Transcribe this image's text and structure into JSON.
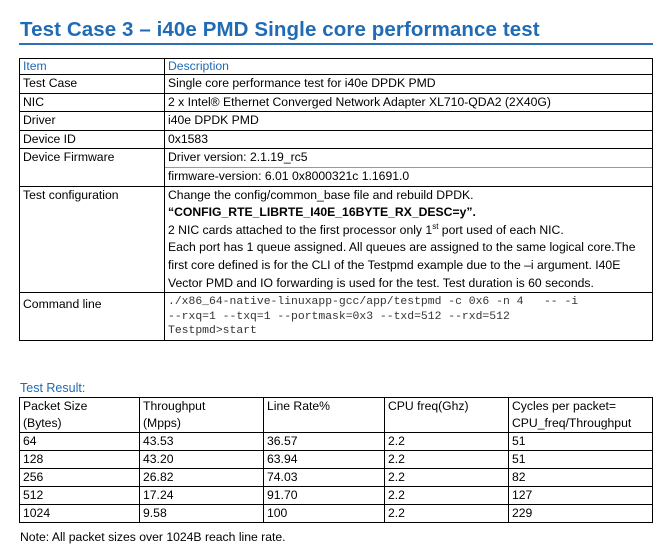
{
  "title": "Test Case 3 – i40e PMD Single core performance test",
  "info": {
    "header": {
      "item": "Item",
      "description": "Description"
    },
    "test_case": {
      "label": "Test Case",
      "value": "Single core performance test for i40e DPDK PMD"
    },
    "nic": {
      "label": "NIC",
      "value": "2 x Intel® Ethernet Converged Network Adapter XL710-QDA2 (2X40G)"
    },
    "driver": {
      "label": "Driver",
      "value": "i40e DPDK PMD"
    },
    "device_id": {
      "label": "Device ID",
      "value": "0x1583"
    },
    "firmware": {
      "label": "Device Firmware",
      "line1": "Driver version: 2.1.19_rc5",
      "line2": "firmware-version: 6.01 0x8000321c 1.1691.0"
    },
    "test_config": {
      "label": "Test configuration",
      "line1": "Change the config/common_base file and rebuild DPDK.",
      "line2": "“CONFIG_RTE_LIBRTE_I40E_16BYTE_RX_DESC=y”.",
      "line3a": "2 NIC cards attached to the first processor only 1",
      "line3sup": "st",
      "line3b": " port used of each NIC.",
      "line4": "Each port has 1 queue assigned. All queues are assigned to the same logical core.The first core defined is for the CLI of the Testpmd example due to the –i argument. I40E Vector PMD and IO forwarding is used for the test. Test duration is 60 seconds."
    },
    "command": {
      "label": "Command line",
      "line1": "./x86_64-native-linuxapp-gcc/app/testpmd -c 0x6 -n 4   -- -i",
      "line2": "--rxq=1 --txq=1 --portmask=0x3 --txd=512 --rxd=512",
      "line3": "Testpmd>start"
    }
  },
  "result_label": "Test Result:",
  "results": {
    "headers": [
      {
        "l1": "Packet Size",
        "l2": "(Bytes)"
      },
      {
        "l1": "Throughput",
        "l2": "(Mpps)"
      },
      {
        "l1": "Line Rate%",
        "l2": ""
      },
      {
        "l1": "CPU freq(Ghz)",
        "l2": ""
      },
      {
        "l1": "Cycles per packet=",
        "l2": "CPU_freq/Throughput"
      }
    ],
    "rows": [
      [
        "64",
        "43.53",
        "36.57",
        "2.2",
        "51"
      ],
      [
        "128",
        "43.20",
        "63.94",
        "2.2",
        "51"
      ],
      [
        "256",
        "26.82",
        "74.03",
        "2.2",
        "82"
      ],
      [
        "512",
        "17.24",
        "91.70",
        "2.2",
        "127"
      ],
      [
        "1024",
        "9.58",
        "100",
        "2.2",
        "229"
      ]
    ]
  },
  "note": "Note: All packet sizes over 1024B reach line rate."
}
